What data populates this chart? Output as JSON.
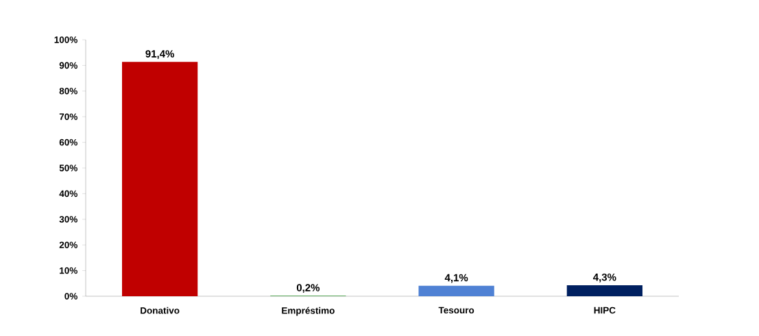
{
  "chart_data": {
    "type": "bar",
    "categories": [
      "Donativo",
      "Empréstimo",
      "Tesouro",
      "HIPC"
    ],
    "values": [
      91.4,
      0.2,
      4.1,
      4.3
    ],
    "colors": [
      "#c00000",
      "#339933",
      "#4f81d4",
      "#002060"
    ],
    "value_labels": [
      "91,4%",
      "0,2%",
      "4,1%",
      "4,3%"
    ],
    "ylim": [
      0,
      100
    ],
    "yticks": [
      {
        "value": 0,
        "label": "0%"
      },
      {
        "value": 10,
        "label": "10%"
      },
      {
        "value": 20,
        "label": "20%"
      },
      {
        "value": 30,
        "label": "30%"
      },
      {
        "value": 40,
        "label": "40%"
      },
      {
        "value": 50,
        "label": "50%"
      },
      {
        "value": 60,
        "label": "60%"
      },
      {
        "value": 70,
        "label": "70%"
      },
      {
        "value": 80,
        "label": "80%"
      },
      {
        "value": 90,
        "label": "90%"
      },
      {
        "value": 100,
        "label": "100%"
      }
    ],
    "grid": false
  }
}
